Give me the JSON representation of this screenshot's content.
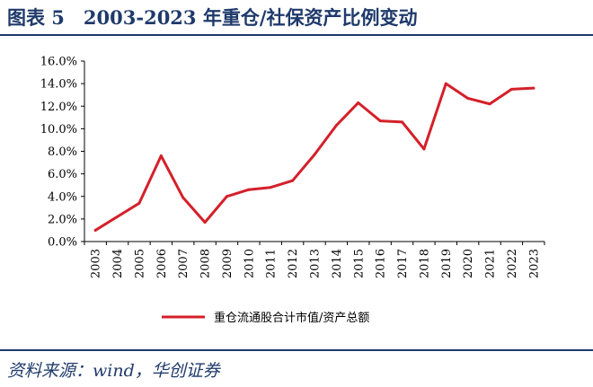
{
  "header": {
    "title": "图表 5　2003-2023 年重仓/社保资产比例变动"
  },
  "footer": {
    "source": "资料来源：wind，华创证券"
  },
  "colors": {
    "accent": "#1f3a6b",
    "series": "#d4202a"
  },
  "chart_data": {
    "type": "line",
    "title": "",
    "xlabel": "",
    "ylabel": "",
    "x": [
      "2003",
      "2004",
      "2005",
      "2006",
      "2007",
      "2008",
      "2009",
      "2010",
      "2011",
      "2012",
      "2013",
      "2014",
      "2015",
      "2016",
      "2017",
      "2018",
      "2019",
      "2020",
      "2021",
      "2022",
      "2023"
    ],
    "series": [
      {
        "name": "重仓流通股合计市值/资产总额",
        "values": [
          1.0,
          2.2,
          3.4,
          7.6,
          3.9,
          1.7,
          4.0,
          4.6,
          4.8,
          5.4,
          7.7,
          10.3,
          12.3,
          10.7,
          10.6,
          8.2,
          14.0,
          12.7,
          12.2,
          13.5,
          13.6
        ]
      }
    ],
    "ylim": [
      0,
      16
    ],
    "yticks": [
      "0.0%",
      "2.0%",
      "4.0%",
      "6.0%",
      "8.0%",
      "10.0%",
      "12.0%",
      "14.0%",
      "16.0%"
    ],
    "grid": false,
    "legend": "bottom"
  }
}
